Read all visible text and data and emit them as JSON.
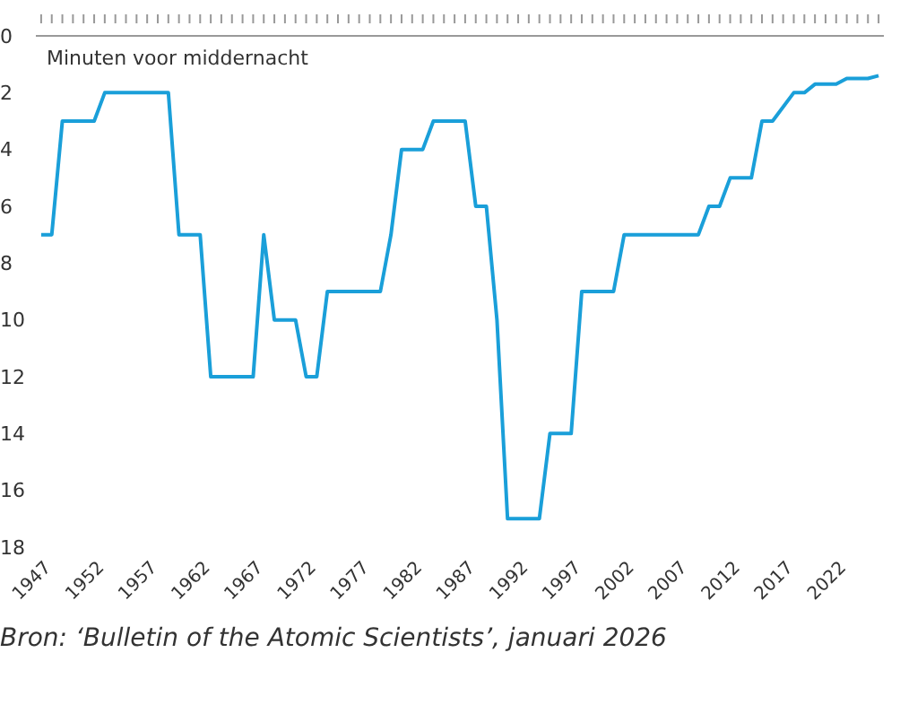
{
  "chart_data": {
    "type": "line",
    "ylabel": "Minuten voor middernacht",
    "x": [
      1947,
      1948,
      1949,
      1952,
      1953,
      1959,
      1960,
      1962,
      1963,
      1967,
      1968,
      1969,
      1971,
      1972,
      1973,
      1974,
      1979,
      1980,
      1981,
      1983,
      1984,
      1987,
      1988,
      1989,
      1990,
      1991,
      1994,
      1995,
      1997,
      1998,
      2001,
      2002,
      2009,
      2010,
      2011,
      2012,
      2014,
      2015,
      2016,
      2018,
      2019,
      2020,
      2022,
      2023,
      2025,
      2026
    ],
    "series": [
      {
        "color": "#1a9fd9",
        "values": [
          7,
          7,
          3,
          3,
          2,
          2,
          7,
          7,
          12,
          12,
          7,
          10,
          10,
          12,
          12,
          9,
          9,
          7,
          4,
          4,
          3,
          3,
          6,
          6,
          10,
          17,
          17,
          14,
          14,
          9,
          9,
          7,
          7,
          6,
          6,
          5,
          5,
          3,
          3,
          2,
          2,
          1.7,
          1.7,
          1.5,
          1.5,
          1.4
        ]
      }
    ],
    "xlim": [
      1946.5,
      2026.5
    ],
    "xticks": [
      1947,
      {
        "value": 1948,
        "label": null
      },
      {
        "value": 1949,
        "label": null
      },
      {
        "value": 1950,
        "label": null
      },
      {
        "value": 1951,
        "label": null
      },
      1952,
      {
        "value": 1953,
        "label": null
      },
      {
        "value": 1954,
        "label": null
      },
      {
        "value": 1955,
        "label": null
      },
      {
        "value": 1956,
        "label": null
      },
      1957,
      {
        "value": 1958,
        "label": null
      },
      {
        "value": 1959,
        "label": null
      },
      {
        "value": 1960,
        "label": null
      },
      {
        "value": 1961,
        "label": null
      },
      1962,
      {
        "value": 1963,
        "label": null
      },
      {
        "value": 1964,
        "label": null
      },
      {
        "value": 1965,
        "label": null
      },
      {
        "value": 1966,
        "label": null
      },
      1967,
      {
        "value": 1968,
        "label": null
      },
      {
        "value": 1969,
        "label": null
      },
      {
        "value": 1970,
        "label": null
      },
      {
        "value": 1971,
        "label": null
      },
      1972,
      {
        "value": 1973,
        "label": null
      },
      {
        "value": 1974,
        "label": null
      },
      {
        "value": 1975,
        "label": null
      },
      {
        "value": 1976,
        "label": null
      },
      1977,
      {
        "value": 1978,
        "label": null
      },
      {
        "value": 1979,
        "label": null
      },
      {
        "value": 1980,
        "label": null
      },
      {
        "value": 1981,
        "label": null
      },
      1982,
      {
        "value": 1983,
        "label": null
      },
      {
        "value": 1984,
        "label": null
      },
      {
        "value": 1985,
        "label": null
      },
      {
        "value": 1986,
        "label": null
      },
      1987,
      {
        "value": 1988,
        "label": null
      },
      {
        "value": 1989,
        "label": null
      },
      {
        "value": 1990,
        "label": null
      },
      {
        "value": 1991,
        "label": null
      },
      1992,
      {
        "value": 1993,
        "label": null
      },
      {
        "value": 1994,
        "label": null
      },
      {
        "value": 1995,
        "label": null
      },
      {
        "value": 1996,
        "label": null
      },
      1997,
      {
        "value": 1998,
        "label": null
      },
      {
        "value": 1999,
        "label": null
      },
      {
        "value": 2000,
        "label": null
      },
      {
        "value": 2001,
        "label": null
      },
      2002,
      {
        "value": 2003,
        "label": null
      },
      {
        "value": 2004,
        "label": null
      },
      {
        "value": 2005,
        "label": null
      },
      {
        "value": 2006,
        "label": null
      },
      2007,
      {
        "value": 2008,
        "label": null
      },
      {
        "value": 2009,
        "label": null
      },
      {
        "value": 2010,
        "label": null
      },
      {
        "value": 2011,
        "label": null
      },
      2012,
      {
        "value": 2013,
        "label": null
      },
      {
        "value": 2014,
        "label": null
      },
      {
        "value": 2015,
        "label": null
      },
      {
        "value": 2016,
        "label": null
      },
      2017,
      {
        "value": 2018,
        "label": null
      },
      {
        "value": 2019,
        "label": null
      },
      {
        "value": 2020,
        "label": null
      },
      {
        "value": 2021,
        "label": null
      },
      2022,
      {
        "value": 2023,
        "label": null
      },
      {
        "value": 2024,
        "label": null
      },
      {
        "value": 2025,
        "label": null
      },
      {
        "value": 2026,
        "label": null
      }
    ],
    "ylim": [
      18,
      0
    ],
    "yticks": [
      0,
      2,
      4,
      6,
      8,
      10,
      12,
      14,
      16,
      18
    ],
    "grid": false,
    "legend": false,
    "marker": "none",
    "line_style": "solid",
    "annotations": [
      "Bron: ‘Bulletin of the Atomic Scientists’, januari 2026"
    ]
  }
}
